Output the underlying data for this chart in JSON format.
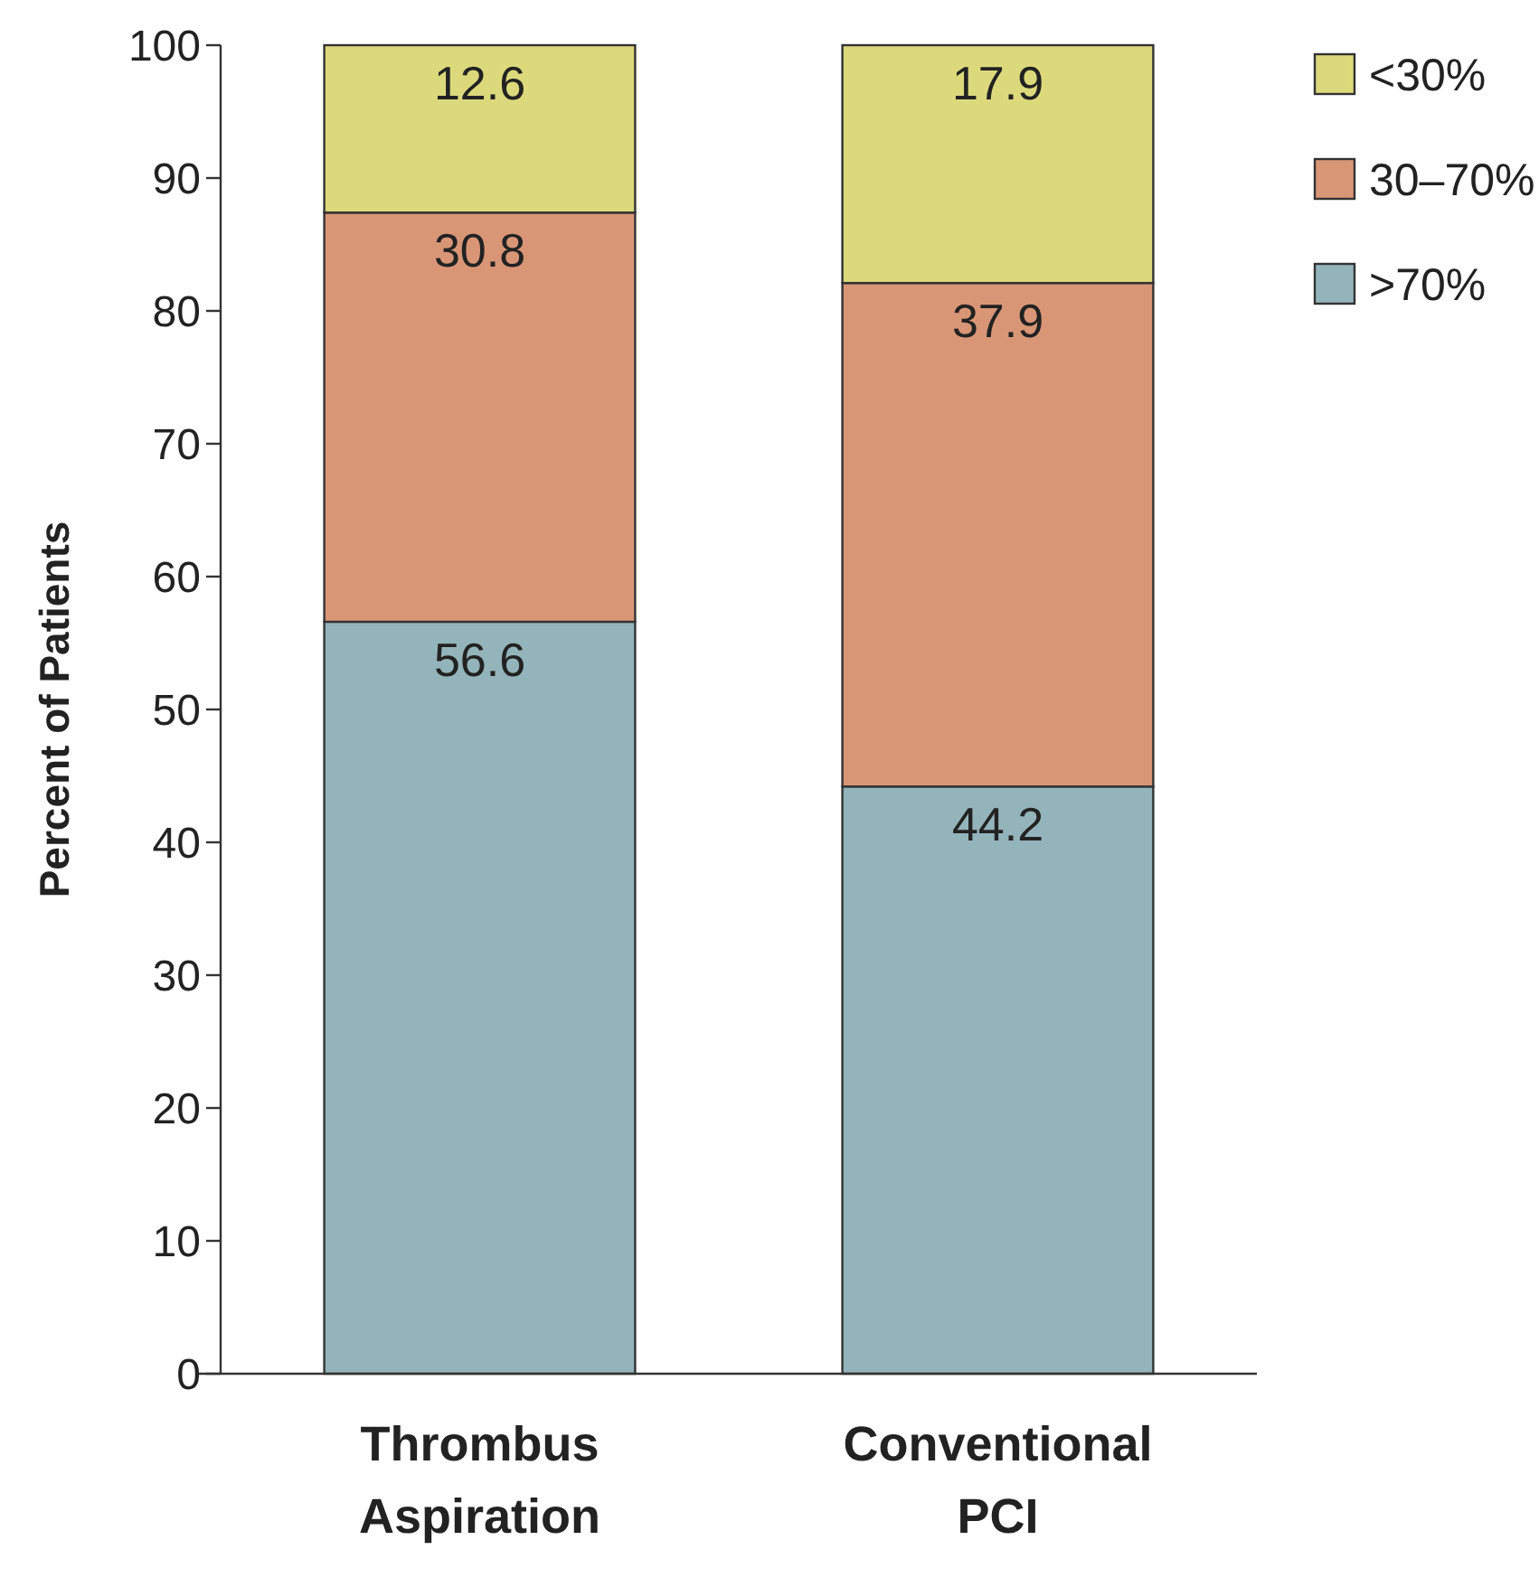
{
  "chart_data": {
    "type": "bar",
    "ylabel": "Percent of Patients",
    "categories": [
      "Thrombus Aspiration",
      "Conventional PCI"
    ],
    "stacked": true,
    "series": [
      {
        "name": ">70%",
        "color": "#94b4bb",
        "values": [
          56.6,
          44.2
        ]
      },
      {
        "name": "30–70%",
        "color": "#d99676",
        "values": [
          30.8,
          37.9
        ]
      },
      {
        "name": "<30%",
        "color": "#dcd97c",
        "values": [
          12.6,
          17.9
        ]
      }
    ],
    "ylim": [
      0,
      100
    ],
    "yticks": [
      0,
      10,
      20,
      30,
      40,
      50,
      60,
      70,
      80,
      90,
      100
    ],
    "data_labels": true,
    "legend": "top right",
    "grid": false
  }
}
